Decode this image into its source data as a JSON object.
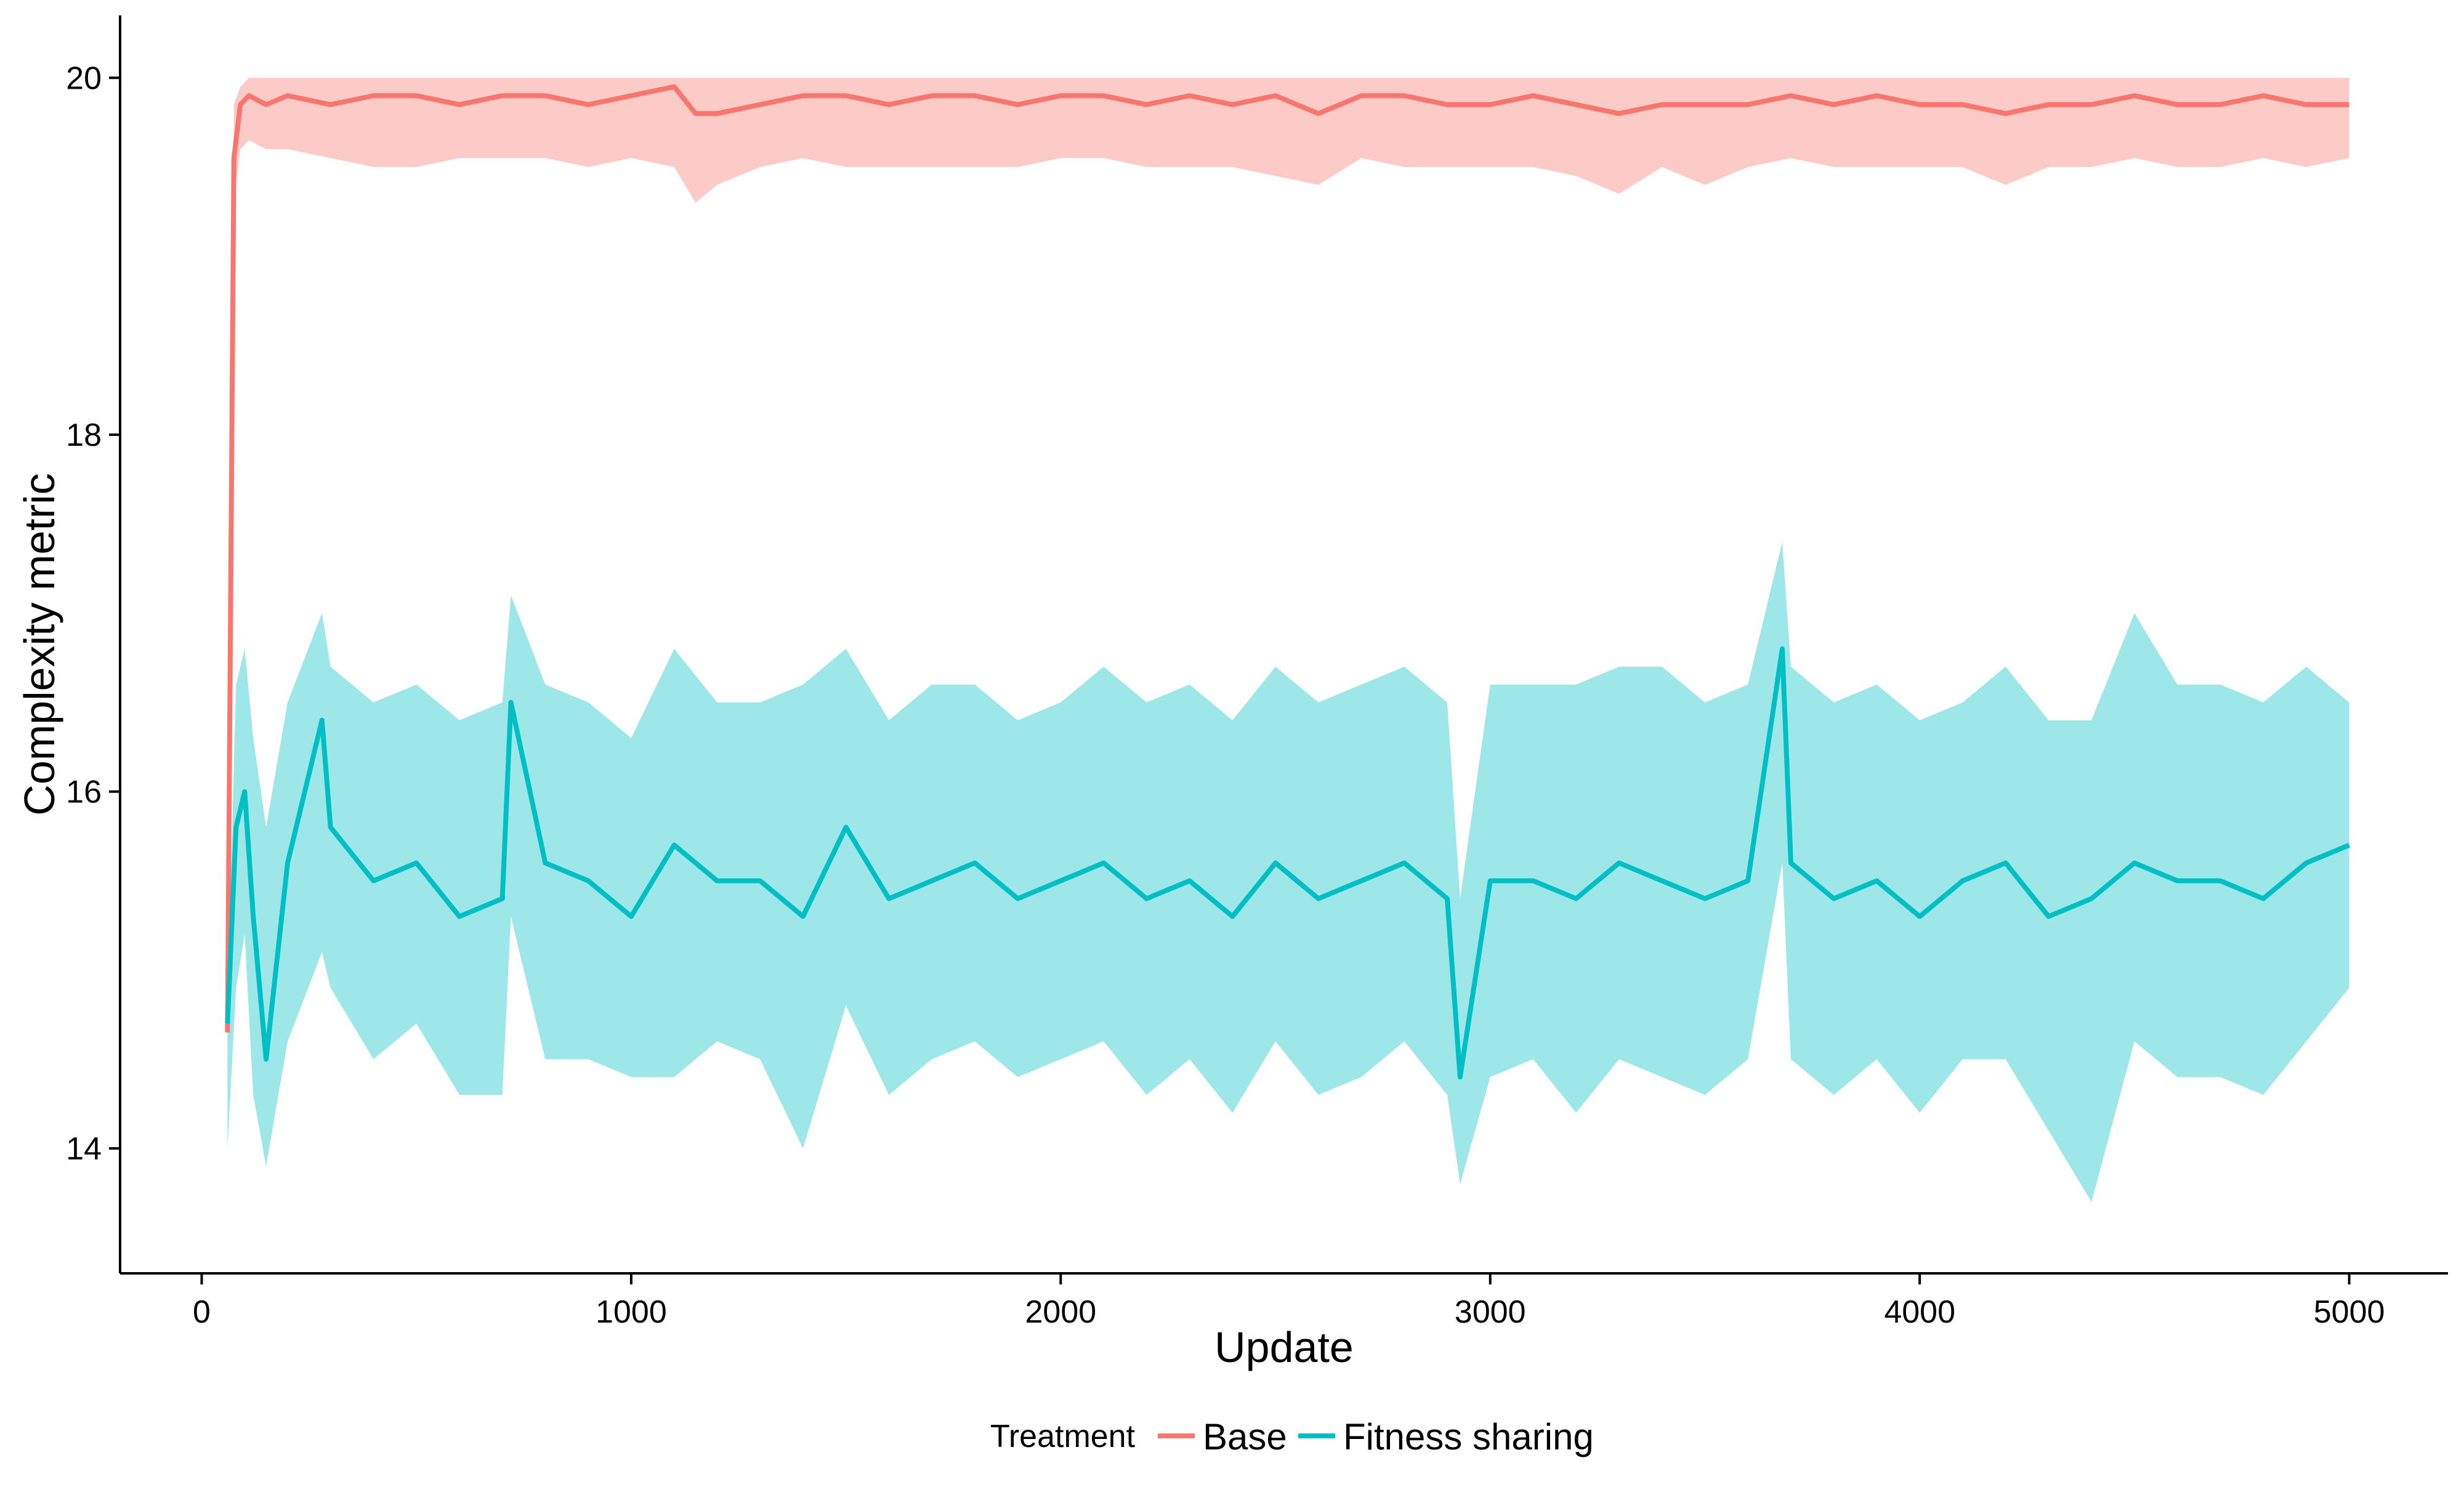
{
  "chart_data": {
    "type": "line",
    "title": "",
    "xlabel": "Update",
    "ylabel": "Complexity metric",
    "xlim": [
      -190,
      5230
    ],
    "ylim": [
      13.3,
      20.35
    ],
    "x_ticks": [
      0,
      1000,
      2000,
      3000,
      4000,
      5000
    ],
    "y_ticks": [
      14,
      16,
      18,
      20
    ],
    "grid": false,
    "legend": {
      "title": "Treatment",
      "position": "bottom"
    },
    "colors": {
      "base_line": "#F8766D",
      "base_ribbon": "#F8766D",
      "fitness_line": "#00BFC4",
      "fitness_ribbon": "#00BFC4"
    },
    "series": [
      {
        "name": "Base",
        "x": [
          60,
          75,
          90,
          110,
          150,
          200,
          300,
          400,
          500,
          600,
          700,
          800,
          900,
          1000,
          1100,
          1150,
          1200,
          1300,
          1400,
          1500,
          1600,
          1700,
          1800,
          1900,
          2000,
          2100,
          2200,
          2300,
          2400,
          2500,
          2600,
          2700,
          2800,
          2900,
          3000,
          3100,
          3200,
          3300,
          3400,
          3500,
          3600,
          3700,
          3800,
          3900,
          4000,
          4100,
          4200,
          4300,
          4400,
          4500,
          4600,
          4700,
          4800,
          4900,
          5000
        ],
        "y": [
          14.65,
          19.55,
          19.85,
          19.9,
          19.85,
          19.9,
          19.85,
          19.9,
          19.9,
          19.85,
          19.9,
          19.9,
          19.85,
          19.9,
          19.95,
          19.8,
          19.8,
          19.85,
          19.9,
          19.9,
          19.85,
          19.9,
          19.9,
          19.85,
          19.9,
          19.9,
          19.85,
          19.9,
          19.85,
          19.9,
          19.8,
          19.9,
          19.9,
          19.85,
          19.85,
          19.9,
          19.85,
          19.8,
          19.85,
          19.85,
          19.85,
          19.9,
          19.85,
          19.9,
          19.85,
          19.85,
          19.8,
          19.85,
          19.85,
          19.9,
          19.85,
          19.85,
          19.9,
          19.85,
          19.85
        ],
        "lower": [
          14.6,
          19.3,
          19.6,
          19.65,
          19.6,
          19.6,
          19.55,
          19.5,
          19.5,
          19.55,
          19.55,
          19.55,
          19.5,
          19.55,
          19.5,
          19.3,
          19.4,
          19.5,
          19.55,
          19.5,
          19.5,
          19.5,
          19.5,
          19.5,
          19.55,
          19.55,
          19.5,
          19.5,
          19.5,
          19.45,
          19.4,
          19.55,
          19.5,
          19.5,
          19.5,
          19.5,
          19.45,
          19.35,
          19.5,
          19.4,
          19.5,
          19.55,
          19.5,
          19.5,
          19.5,
          19.5,
          19.4,
          19.5,
          19.5,
          19.55,
          19.5,
          19.5,
          19.55,
          19.5,
          19.55
        ],
        "upper": [
          14.8,
          19.85,
          19.95,
          20.0,
          20.0,
          20.0,
          20.0,
          20.0,
          20.0,
          20.0,
          20.0,
          20.0,
          20.0,
          20.0,
          20.0,
          20.0,
          20.0,
          20.0,
          20.0,
          20.0,
          20.0,
          20.0,
          20.0,
          20.0,
          20.0,
          20.0,
          20.0,
          20.0,
          20.0,
          20.0,
          20.0,
          20.0,
          20.0,
          20.0,
          20.0,
          20.0,
          20.0,
          20.0,
          20.0,
          20.0,
          20.0,
          20.0,
          20.0,
          20.0,
          20.0,
          20.0,
          20.0,
          20.0,
          20.0,
          20.0,
          20.0,
          20.0,
          20.0,
          20.0,
          20.0
        ]
      },
      {
        "name": "Fitness sharing",
        "x": [
          60,
          80,
          100,
          120,
          150,
          200,
          280,
          300,
          400,
          500,
          600,
          700,
          720,
          800,
          900,
          1000,
          1100,
          1200,
          1300,
          1400,
          1500,
          1600,
          1700,
          1800,
          1900,
          2000,
          2100,
          2200,
          2300,
          2400,
          2500,
          2600,
          2700,
          2800,
          2900,
          2930,
          3000,
          3100,
          3200,
          3300,
          3400,
          3500,
          3600,
          3680,
          3700,
          3800,
          3900,
          4000,
          4100,
          4200,
          4300,
          4400,
          4500,
          4600,
          4700,
          4800,
          4900,
          5000
        ],
        "y": [
          14.7,
          15.8,
          16.0,
          15.3,
          14.5,
          15.6,
          16.4,
          15.8,
          15.5,
          15.6,
          15.3,
          15.4,
          16.5,
          15.6,
          15.5,
          15.3,
          15.7,
          15.5,
          15.5,
          15.3,
          15.8,
          15.4,
          15.5,
          15.6,
          15.4,
          15.5,
          15.6,
          15.4,
          15.5,
          15.3,
          15.6,
          15.4,
          15.5,
          15.6,
          15.4,
          14.4,
          15.5,
          15.5,
          15.4,
          15.6,
          15.5,
          15.4,
          15.5,
          16.8,
          15.6,
          15.4,
          15.5,
          15.3,
          15.5,
          15.6,
          15.3,
          15.4,
          15.6,
          15.5,
          15.5,
          15.4,
          15.6,
          15.7
        ],
        "lower": [
          14.0,
          14.9,
          15.2,
          14.3,
          13.9,
          14.6,
          15.1,
          14.9,
          14.5,
          14.7,
          14.3,
          14.3,
          15.3,
          14.5,
          14.5,
          14.4,
          14.4,
          14.6,
          14.5,
          14.0,
          14.8,
          14.3,
          14.5,
          14.6,
          14.4,
          14.5,
          14.6,
          14.3,
          14.5,
          14.2,
          14.6,
          14.3,
          14.4,
          14.6,
          14.3,
          13.8,
          14.4,
          14.5,
          14.2,
          14.5,
          14.4,
          14.3,
          14.5,
          15.6,
          14.5,
          14.3,
          14.5,
          14.2,
          14.5,
          14.5,
          14.1,
          13.7,
          14.6,
          14.4,
          14.4,
          14.3,
          14.6,
          14.9
        ],
        "upper": [
          14.8,
          16.6,
          16.8,
          16.3,
          15.8,
          16.5,
          17.0,
          16.7,
          16.5,
          16.6,
          16.4,
          16.5,
          17.1,
          16.6,
          16.5,
          16.3,
          16.8,
          16.5,
          16.5,
          16.6,
          16.8,
          16.4,
          16.6,
          16.6,
          16.4,
          16.5,
          16.7,
          16.5,
          16.6,
          16.4,
          16.7,
          16.5,
          16.6,
          16.7,
          16.5,
          15.4,
          16.6,
          16.6,
          16.6,
          16.7,
          16.7,
          16.5,
          16.6,
          17.4,
          16.7,
          16.5,
          16.6,
          16.4,
          16.5,
          16.7,
          16.4,
          16.4,
          17.0,
          16.6,
          16.6,
          16.5,
          16.7,
          16.5
        ]
      }
    ]
  }
}
